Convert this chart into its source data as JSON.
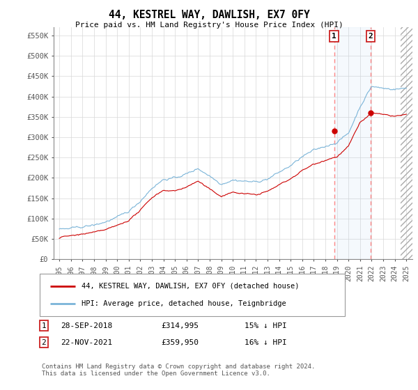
{
  "title": "44, KESTREL WAY, DAWLISH, EX7 0FY",
  "subtitle": "Price paid vs. HM Land Registry's House Price Index (HPI)",
  "ylabel_ticks": [
    "£0",
    "£50K",
    "£100K",
    "£150K",
    "£200K",
    "£250K",
    "£300K",
    "£350K",
    "£400K",
    "£450K",
    "£500K",
    "£550K"
  ],
  "ytick_values": [
    0,
    50000,
    100000,
    150000,
    200000,
    250000,
    300000,
    350000,
    400000,
    450000,
    500000,
    550000
  ],
  "ylim": [
    0,
    570000
  ],
  "sale1_date": "28-SEP-2018",
  "sale1_price": 314995,
  "sale1_price_str": "£314,995",
  "sale1_hpi_pct": "15% ↓ HPI",
  "sale2_date": "22-NOV-2021",
  "sale2_price": 359950,
  "sale2_price_str": "£359,950",
  "sale2_hpi_pct": "16% ↓ HPI",
  "legend_label1": "44, KESTREL WAY, DAWLISH, EX7 0FY (detached house)",
  "legend_label2": "HPI: Average price, detached house, Teignbridge",
  "footer": "Contains HM Land Registry data © Crown copyright and database right 2024.\nThis data is licensed under the Open Government Licence v3.0.",
  "hpi_color": "#7ab4d8",
  "price_color": "#cc0000",
  "vline_color": "#ff8888",
  "sale1_x": 2018.75,
  "sale2_x": 2021.9,
  "sale1_y": 314995,
  "sale2_y": 359950,
  "xmin": 1994.5,
  "xmax": 2025.5
}
